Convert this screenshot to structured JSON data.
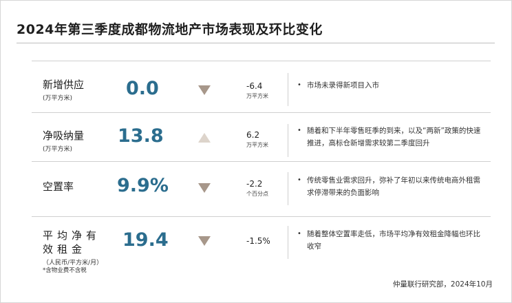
{
  "title": "2024年第三季度成都物流地产市场表现及环比变化",
  "colors": {
    "accent": "#2b6d8e",
    "triangle": "#a7978a",
    "triangle_up": "#ddd4cb"
  },
  "rows": [
    {
      "metric": "新增供应",
      "unit": "(万平方米)",
      "value": "0.0",
      "trend": "down",
      "trend_icon": "triangle-down-icon",
      "change": "-6.4",
      "change_unit": "万平方米",
      "comment": "市场未录得新项目入市"
    },
    {
      "metric": "净吸纳量",
      "unit": "(万平方米)",
      "value": "13.8",
      "trend": "up",
      "trend_icon": "triangle-up-icon",
      "change": "6.2",
      "change_unit": "万平方米",
      "comment": "随着和下半年零售旺季的到来，以及“两新”政策的快速推进，高标仓新增需求较第二季度回升"
    },
    {
      "metric": "空置率",
      "unit": "",
      "value": "9.9%",
      "trend": "down",
      "trend_icon": "triangle-down-icon",
      "change": "-2.2",
      "change_unit": "个百分点",
      "comment": "传统零售业需求回升，弥补了年初以来传统电商外租需求停滞带来的负面影响"
    },
    {
      "metric": "平均净有效租金",
      "unit": "（人民币/平方米/月）",
      "note": "*含物业费不含税",
      "value": "19.4",
      "trend": "down",
      "trend_icon": "triangle-down-icon",
      "change": "-1.5%",
      "change_unit": "",
      "comment": "随着整体空置率走低，市场平均净有效租金降幅也环比收窄"
    }
  ],
  "source": "仲量联行研究部，2024年10月"
}
